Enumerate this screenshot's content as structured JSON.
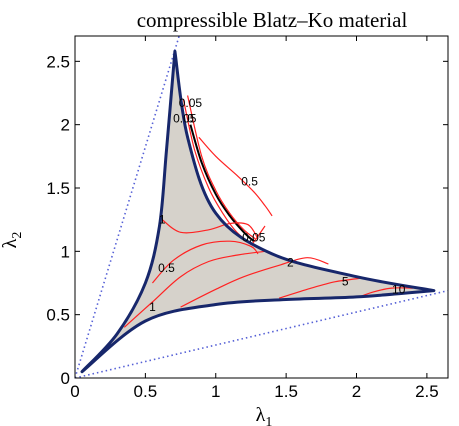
{
  "chart_data": {
    "type": "contour",
    "title": "compressible Blatz–Ko material",
    "xlabel": "λ",
    "xlabel_sub": "1",
    "ylabel": "λ",
    "ylabel_sub": "2",
    "xlim": [
      0,
      2.65
    ],
    "ylim": [
      0,
      2.7
    ],
    "x_ticks": [
      0,
      0.5,
      1,
      1.5,
      2,
      2.5
    ],
    "x_tick_labels": [
      "0",
      "0.5",
      "1",
      "1.5",
      "2",
      "2.5"
    ],
    "y_ticks": [
      0,
      0.5,
      1,
      1.5,
      2,
      2.5
    ],
    "y_tick_labels": [
      "0",
      "0.5",
      "1",
      "1.5",
      "2",
      "2.5"
    ],
    "grid": false,
    "colors": {
      "region_fill": "#d6d2cb",
      "boundary": "#17276b",
      "contour": "#ff2222",
      "zero_level": "#000000",
      "asymptote": "#5560d6"
    },
    "region_boundary": {
      "cusps": [
        [
          0.05,
          0.05
        ],
        [
          0.71,
          2.58
        ],
        [
          2.55,
          0.69
        ]
      ],
      "edges": [
        [
          [
            0.05,
            0.05
          ],
          [
            0.3,
            0.35
          ],
          [
            0.5,
            0.75
          ],
          [
            0.6,
            1.2
          ],
          [
            0.65,
            1.8
          ],
          [
            0.71,
            2.58
          ]
        ],
        [
          [
            0.71,
            2.58
          ],
          [
            0.8,
            1.9
          ],
          [
            1.0,
            1.3
          ],
          [
            1.4,
            0.98
          ],
          [
            2.0,
            0.8
          ],
          [
            2.55,
            0.69
          ]
        ],
        [
          [
            2.55,
            0.69
          ],
          [
            2.0,
            0.64
          ],
          [
            1.5,
            0.62
          ],
          [
            1.0,
            0.58
          ],
          [
            0.5,
            0.45
          ],
          [
            0.05,
            0.05
          ]
        ]
      ]
    },
    "asymptotes": [
      {
        "from": [
          0,
          0
        ],
        "to": [
          0.74,
          2.7
        ]
      },
      {
        "from": [
          0,
          0
        ],
        "to": [
          2.65,
          0.69
        ]
      }
    ],
    "contour_levels": [
      {
        "label": "0",
        "color": "zero_level",
        "label_at": [
          0.82,
          2.05
        ],
        "points": [
          [
            0.82,
            2.0
          ],
          [
            0.9,
            1.7
          ],
          [
            1.0,
            1.45
          ],
          [
            1.1,
            1.28
          ],
          [
            1.2,
            1.15
          ],
          [
            1.27,
            1.08
          ]
        ]
      },
      {
        "label": "0.05",
        "color": "contour",
        "label_at": [
          0.82,
          2.17
        ],
        "points": [
          [
            0.8,
            2.23
          ],
          [
            0.9,
            1.75
          ],
          [
            1.0,
            1.48
          ],
          [
            1.1,
            1.3
          ],
          [
            1.2,
            1.17
          ],
          [
            1.28,
            1.1
          ]
        ]
      },
      {
        "label": "0.05",
        "color": "contour",
        "label_at": [
          0.78,
          2.05
        ],
        "points": [
          [
            0.77,
            2.2
          ],
          [
            0.85,
            1.8
          ],
          [
            0.95,
            1.5
          ],
          [
            1.05,
            1.3
          ],
          [
            1.15,
            1.15
          ],
          [
            1.26,
            1.05
          ]
        ]
      },
      {
        "label": "0.05",
        "color": "contour",
        "label_at": [
          1.27,
          1.11
        ],
        "points": [
          [
            1.26,
            1.06
          ],
          [
            1.3,
            1.12
          ],
          [
            1.35,
            1.2
          ]
        ]
      },
      {
        "label": "0.5",
        "color": "contour",
        "label_at": [
          1.24,
          1.55
        ],
        "points": [
          [
            0.88,
            1.9
          ],
          [
            1.0,
            1.75
          ],
          [
            1.15,
            1.6
          ],
          [
            1.27,
            1.47
          ],
          [
            1.35,
            1.36
          ],
          [
            1.4,
            1.28
          ]
        ]
      },
      {
        "label": "0.5",
        "color": "contour",
        "label_at": [
          0.65,
          0.87
        ],
        "points": [
          [
            0.55,
            0.75
          ],
          [
            0.7,
            0.93
          ],
          [
            0.9,
            1.05
          ],
          [
            1.1,
            1.08
          ],
          [
            1.25,
            1.04
          ],
          [
            1.3,
            0.98
          ]
        ]
      },
      {
        "label": "1",
        "color": "contour",
        "label_at": [
          0.55,
          0.56
        ],
        "points": [
          [
            0.35,
            0.4
          ],
          [
            0.55,
            0.6
          ],
          [
            0.75,
            0.8
          ],
          [
            0.95,
            0.92
          ],
          [
            1.15,
            0.97
          ],
          [
            1.35,
            1.0
          ]
        ]
      },
      {
        "label": "1",
        "color": "contour",
        "label_at": [
          0.62,
          1.25
        ],
        "points": [
          [
            0.62,
            1.25
          ],
          [
            0.75,
            1.15
          ],
          [
            0.95,
            1.17
          ],
          [
            1.1,
            1.22
          ],
          [
            1.23,
            1.21
          ],
          [
            1.3,
            1.1
          ]
        ]
      },
      {
        "label": "2",
        "color": "contour",
        "label_at": [
          1.53,
          0.91
        ],
        "points": [
          [
            0.75,
            0.56
          ],
          [
            1.0,
            0.7
          ],
          [
            1.2,
            0.8
          ],
          [
            1.45,
            0.89
          ],
          [
            1.65,
            0.95
          ],
          [
            1.8,
            0.9
          ]
        ]
      },
      {
        "label": "5",
        "color": "contour",
        "label_at": [
          1.92,
          0.76
        ],
        "points": [
          [
            1.45,
            0.63
          ],
          [
            1.65,
            0.7
          ],
          [
            1.85,
            0.76
          ],
          [
            2.05,
            0.79
          ]
        ]
      },
      {
        "label": "10",
        "color": "contour",
        "label_at": [
          2.3,
          0.7
        ],
        "points": [
          [
            2.02,
            0.64
          ],
          [
            2.12,
            0.68
          ],
          [
            2.25,
            0.71
          ],
          [
            2.4,
            0.71
          ]
        ]
      }
    ]
  }
}
